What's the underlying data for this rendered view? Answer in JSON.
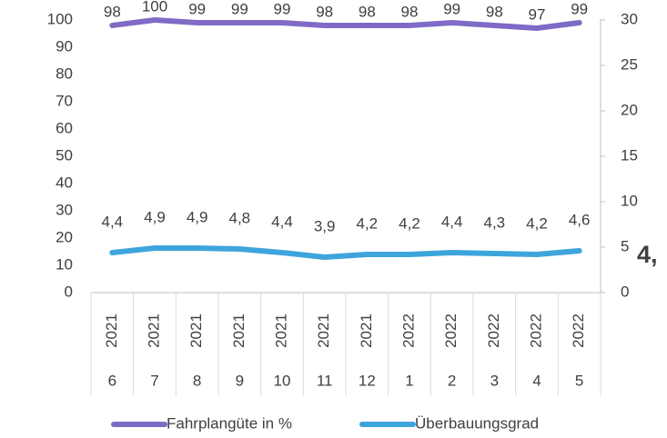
{
  "chart_data": {
    "type": "line",
    "categories": [
      {
        "year": "2021",
        "month": "6"
      },
      {
        "year": "2021",
        "month": "7"
      },
      {
        "year": "2021",
        "month": "8"
      },
      {
        "year": "2021",
        "month": "9"
      },
      {
        "year": "2021",
        "month": "10"
      },
      {
        "year": "2021",
        "month": "11"
      },
      {
        "year": "2021",
        "month": "12"
      },
      {
        "year": "2022",
        "month": "1"
      },
      {
        "year": "2022",
        "month": "2"
      },
      {
        "year": "2022",
        "month": "3"
      },
      {
        "year": "2022",
        "month": "4"
      },
      {
        "year": "2022",
        "month": "5"
      }
    ],
    "series": [
      {
        "name": "Fahrplangüte in %",
        "color": "#7f6bc6",
        "values": [
          98,
          100,
          99,
          99,
          99,
          98,
          98,
          98,
          99,
          98,
          97,
          99
        ]
      },
      {
        "name": "Überbauungsgrad",
        "color": "#3da5dc",
        "axis": "y2",
        "values": [
          4.4,
          4.9,
          4.9,
          4.8,
          4.4,
          3.9,
          4.2,
          4.2,
          4.4,
          4.3,
          4.2,
          4.6
        ],
        "value_labels": [
          "4,4",
          "4,9",
          "4,9",
          "4,8",
          "4,4",
          "3,9",
          "4,2",
          "4,2",
          "4,4",
          "4,3",
          "4,2",
          "4,6"
        ]
      }
    ],
    "ylim": [
      0,
      100
    ],
    "yticks": [
      0,
      10,
      20,
      30,
      40,
      50,
      60,
      70,
      80,
      90,
      100
    ],
    "y2lim": [
      0,
      30
    ],
    "y2ticks": [
      0,
      5,
      10,
      15,
      20,
      25,
      30
    ],
    "annotation": "4,",
    "legend": "bottom"
  }
}
